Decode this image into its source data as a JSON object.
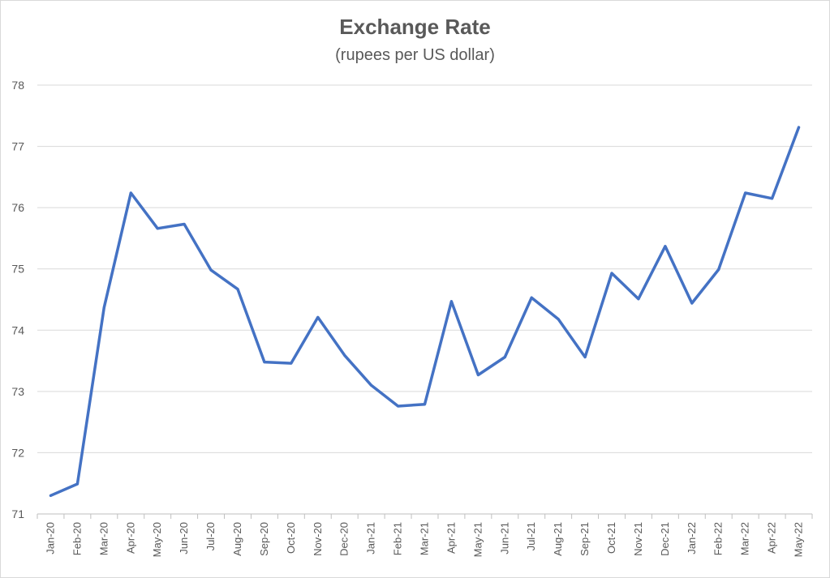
{
  "chart_data": {
    "type": "line",
    "title": "Exchange Rate",
    "subtitle": "(rupees per US dollar)",
    "xlabel": "",
    "ylabel": "",
    "ylim": [
      71,
      78
    ],
    "yticks": [
      71,
      72,
      73,
      74,
      75,
      76,
      77,
      78
    ],
    "grid": true,
    "legend": "none",
    "line_color": "#4472c4",
    "categories": [
      "Jan-20",
      "Feb-20",
      "Mar-20",
      "Apr-20",
      "May-20",
      "Jun-20",
      "Jul-20",
      "Aug-20",
      "Sep-20",
      "Oct-20",
      "Nov-20",
      "Dec-20",
      "Jan-21",
      "Feb-21",
      "Mar-21",
      "Apr-21",
      "May-21",
      "Jun-21",
      "Jul-21",
      "Aug-21",
      "Sep-21",
      "Oct-21",
      "Nov-21",
      "Dec-21",
      "Jan-22",
      "Feb-22",
      "Mar-22",
      "Apr-22",
      "May-22"
    ],
    "series": [
      {
        "values": [
          71.3,
          71.49,
          74.37,
          76.24,
          75.66,
          75.73,
          74.98,
          74.67,
          73.48,
          73.46,
          74.21,
          73.59,
          73.1,
          72.76,
          72.79,
          74.47,
          73.27,
          73.56,
          74.53,
          74.18,
          73.56,
          74.93,
          74.51,
          75.37,
          74.44,
          74.99,
          76.24,
          76.15,
          77.31
        ]
      }
    ]
  }
}
